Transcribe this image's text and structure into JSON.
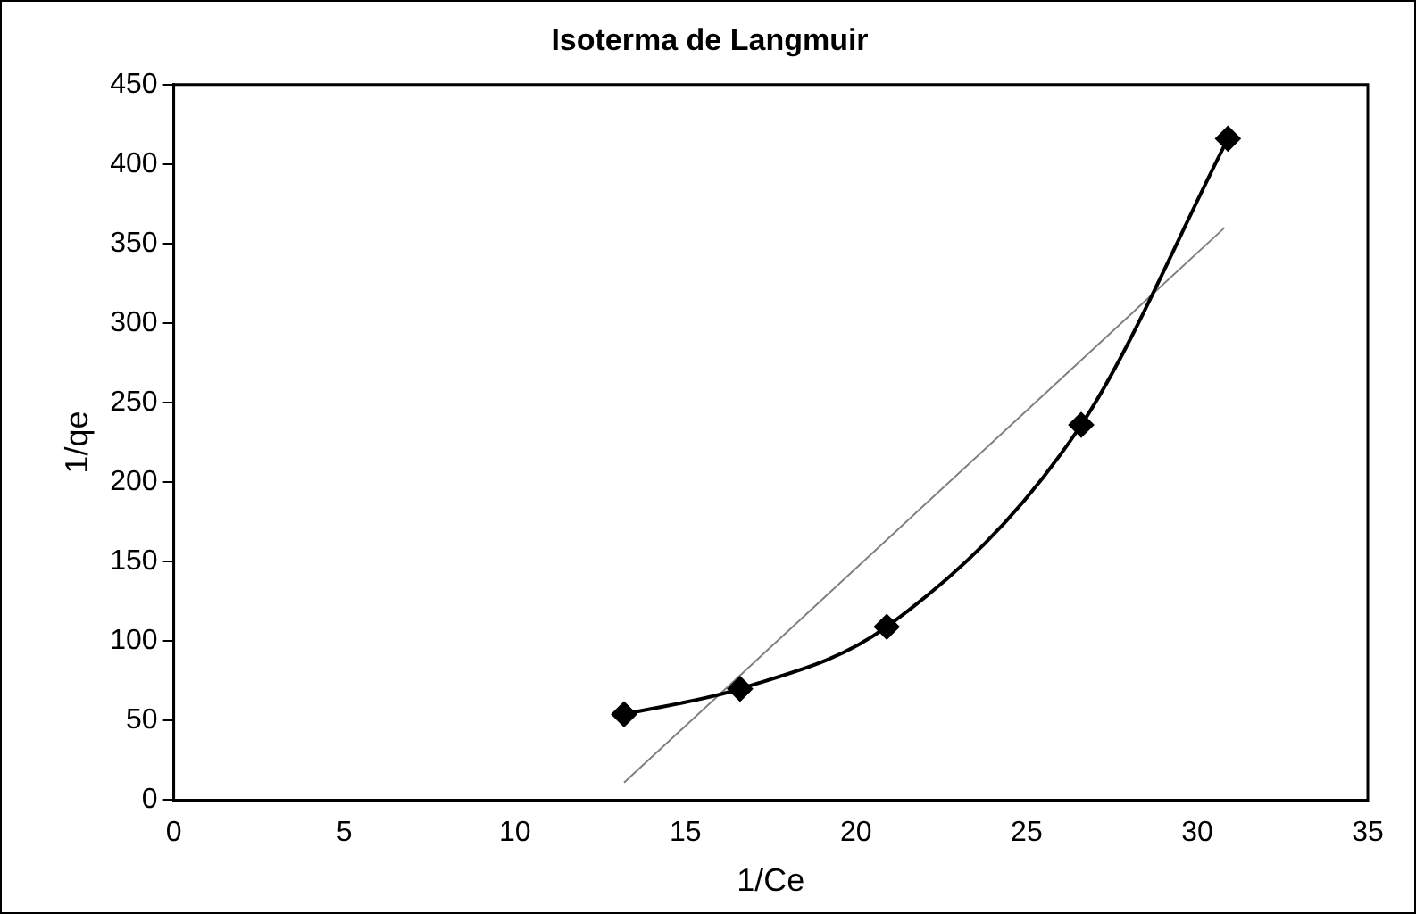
{
  "chart_data": {
    "type": "scatter",
    "title": "Isoterma de Langmuir",
    "xlabel": "1/Ce",
    "ylabel": "1/qe",
    "xlim": [
      0,
      35
    ],
    "xticks": [
      0,
      5,
      10,
      15,
      20,
      25,
      30,
      35
    ],
    "ylim": [
      0,
      450
    ],
    "yticks": [
      0,
      50,
      100,
      150,
      200,
      250,
      300,
      350,
      400,
      450
    ],
    "grid": false,
    "legend": false,
    "series": [
      {
        "type": "line",
        "x": [
          13.2,
          16.6,
          20.9,
          26.6,
          30.9
        ],
        "values": [
          54,
          70,
          109,
          236,
          416
        ],
        "color": "#000000",
        "marker": "diamond",
        "line_style": "solid"
      },
      {
        "type": "line",
        "x": [
          13.2,
          30.8
        ],
        "values": [
          11,
          360
        ],
        "color": "#808080",
        "marker": "none"
      }
    ]
  }
}
